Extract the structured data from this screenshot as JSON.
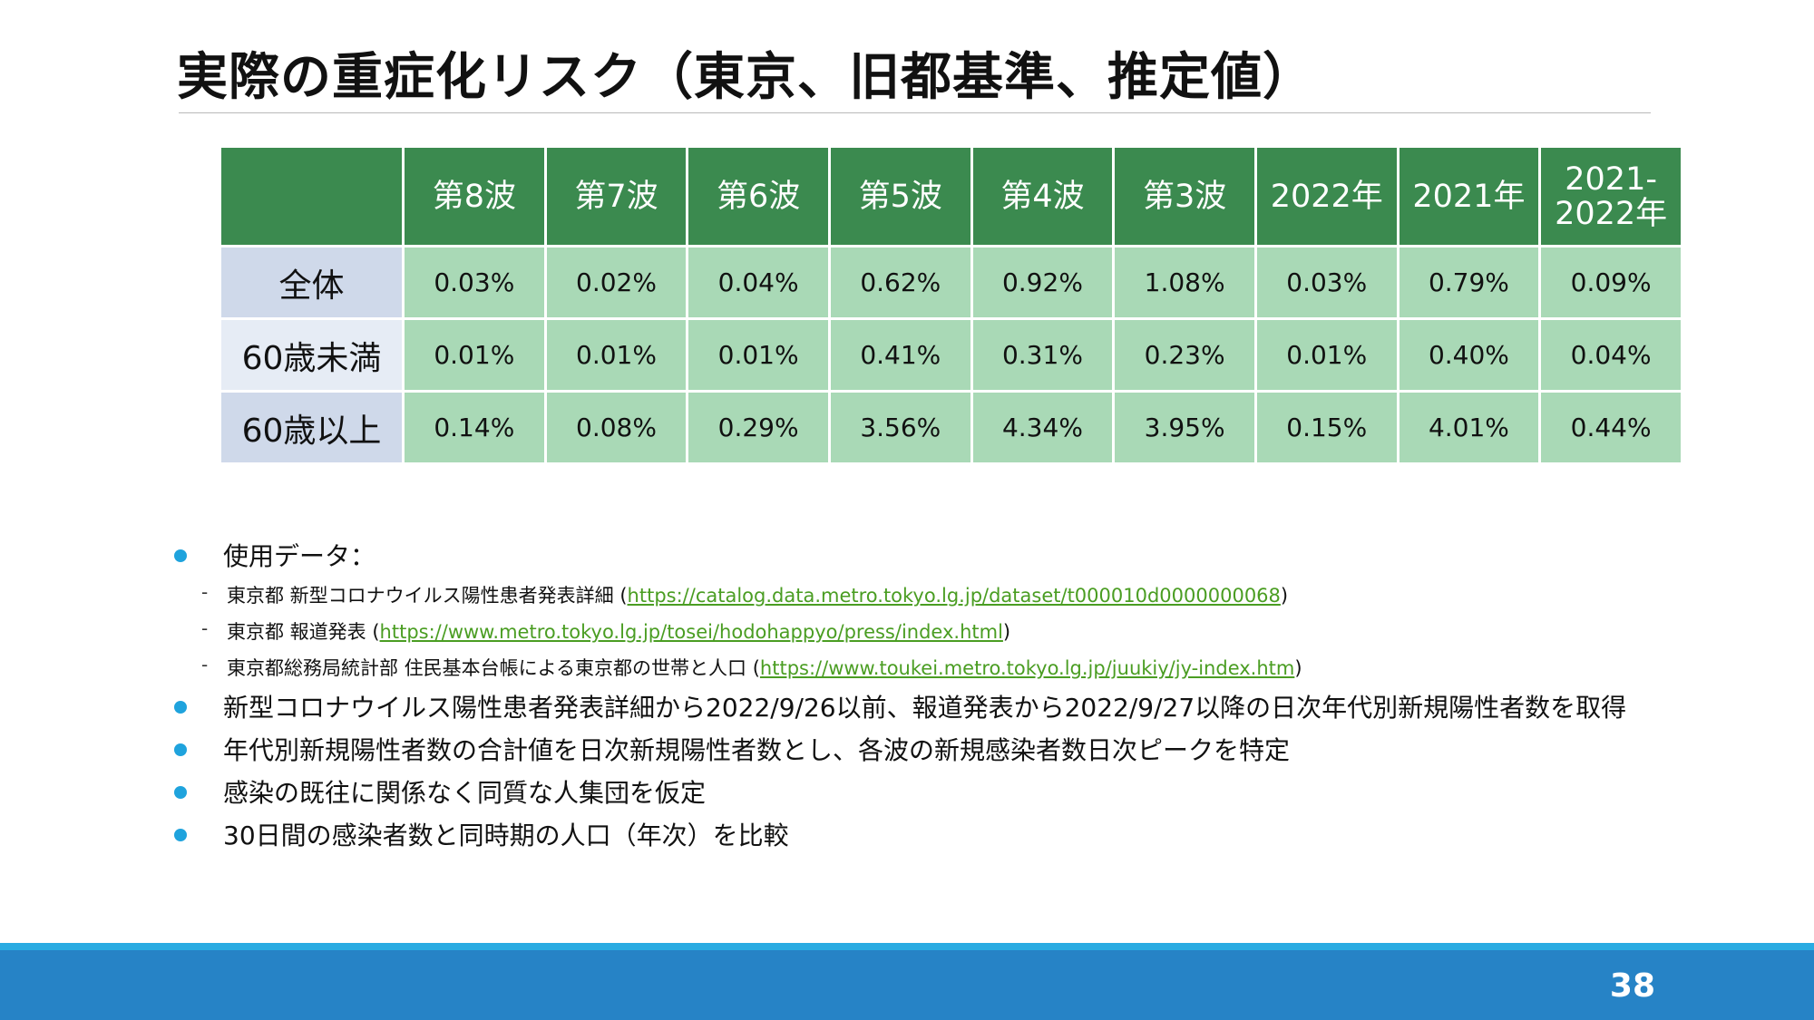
{
  "title": "実際の重症化リスク（東京、旧都基準、推定値）",
  "table": {
    "headers": [
      "第8波",
      "第7波",
      "第6波",
      "第5波",
      "第4波",
      "第3波",
      "2022年",
      "2021年"
    ],
    "last_header_line1": "2021-",
    "last_header_line2": "2022年",
    "rows": [
      {
        "label": "全体",
        "values": [
          "0.03%",
          "0.02%",
          "0.04%",
          "0.62%",
          "0.92%",
          "1.08%",
          "0.03%",
          "0.79%",
          "0.09%"
        ]
      },
      {
        "label": "60歳未満",
        "values": [
          "0.01%",
          "0.01%",
          "0.01%",
          "0.41%",
          "0.31%",
          "0.23%",
          "0.01%",
          "0.40%",
          "0.04%"
        ]
      },
      {
        "label": "60歳以上",
        "values": [
          "0.14%",
          "0.08%",
          "0.29%",
          "3.56%",
          "4.34%",
          "3.95%",
          "0.15%",
          "4.01%",
          "0.44%"
        ]
      }
    ]
  },
  "notes": {
    "data_heading": "使用データ：",
    "sources": [
      {
        "label": "東京都 新型コロナウイルス陽性患者発表詳細 (",
        "url": "https://catalog.data.metro.tokyo.lg.jp/dataset/t000010d0000000068",
        "suffix": ")"
      },
      {
        "label": "東京都 報道発表 (",
        "url": "https://www.metro.tokyo.lg.jp/tosei/hodohappyo/press/index.html",
        "suffix": ")"
      },
      {
        "label": "東京都総務局統計部 住民基本台帳による東京都の世帯と人口 (",
        "url": "https://www.toukei.metro.tokyo.lg.jp/juukiy/jy-index.htm",
        "suffix": ")"
      }
    ],
    "bullets": [
      "新型コロナウイルス陽性患者発表詳細から2022/9/26以前、報道発表から2022/9/27以降の日次年代別新規陽性者数を取得",
      "年代別新規陽性者数の合計値を日次新規陽性者数とし、各波の新規感染者数日次ピークを特定",
      "感染の既往に関係なく同質な人集団を仮定",
      "30日間の感染者数と同時期の人口（年次）を比較"
    ]
  },
  "footer": {
    "page_number": "38"
  },
  "colors": {
    "header_green": "#3b8a4f",
    "cell_green": "#a9d9b6",
    "row_label_blue": "#cfd9ea",
    "bullet_blue": "#1fa3dd",
    "link_green": "#4a9d22",
    "footer_blue": "#2683c6"
  }
}
